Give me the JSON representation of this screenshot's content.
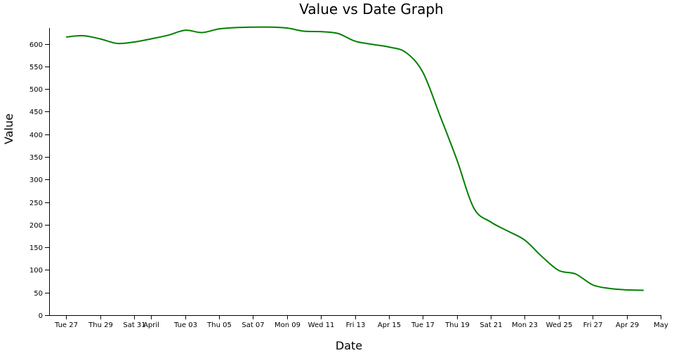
{
  "chart_data": {
    "type": "line",
    "title": "Value vs Date Graph",
    "xlabel": "Date",
    "ylabel": "Value",
    "grid": false,
    "legend": "none",
    "colors": {
      "series": "#008000",
      "axis": "#000000",
      "background": "#ffffff"
    },
    "xlim": [
      "2018-03-26",
      "2018-05-01"
    ],
    "ylim": [
      0,
      635
    ],
    "x_ticks": [
      {
        "date": "2018-03-27",
        "label": "Tue 27"
      },
      {
        "date": "2018-03-29",
        "label": "Thu 29"
      },
      {
        "date": "2018-03-31",
        "label": "Sat 31"
      },
      {
        "date": "2018-04-01",
        "label": "April"
      },
      {
        "date": "2018-04-03",
        "label": "Tue 03"
      },
      {
        "date": "2018-04-05",
        "label": "Thu 05"
      },
      {
        "date": "2018-04-07",
        "label": "Sat 07"
      },
      {
        "date": "2018-04-09",
        "label": "Mon 09"
      },
      {
        "date": "2018-04-11",
        "label": "Wed 11"
      },
      {
        "date": "2018-04-13",
        "label": "Fri 13"
      },
      {
        "date": "2018-04-15",
        "label": "Apr 15"
      },
      {
        "date": "2018-04-17",
        "label": "Tue 17"
      },
      {
        "date": "2018-04-19",
        "label": "Thu 19"
      },
      {
        "date": "2018-04-21",
        "label": "Sat 21"
      },
      {
        "date": "2018-04-23",
        "label": "Mon 23"
      },
      {
        "date": "2018-04-25",
        "label": "Wed 25"
      },
      {
        "date": "2018-04-27",
        "label": "Fri 27"
      },
      {
        "date": "2018-04-29",
        "label": "Apr 29"
      },
      {
        "date": "2018-05-01",
        "label": "May"
      }
    ],
    "y_ticks": [
      0,
      50,
      100,
      150,
      200,
      250,
      300,
      350,
      400,
      450,
      500,
      550,
      600
    ],
    "series": [
      {
        "values": [
          {
            "x": "2018-03-27",
            "y": 615
          },
          {
            "x": "2018-03-28",
            "y": 618
          },
          {
            "x": "2018-03-29",
            "y": 611
          },
          {
            "x": "2018-03-30",
            "y": 601
          },
          {
            "x": "2018-03-31",
            "y": 604
          },
          {
            "x": "2018-04-01",
            "y": 611
          },
          {
            "x": "2018-04-02",
            "y": 619
          },
          {
            "x": "2018-04-03",
            "y": 630
          },
          {
            "x": "2018-04-04",
            "y": 625
          },
          {
            "x": "2018-04-05",
            "y": 633
          },
          {
            "x": "2018-04-06",
            "y": 636
          },
          {
            "x": "2018-04-07",
            "y": 637
          },
          {
            "x": "2018-04-08",
            "y": 637
          },
          {
            "x": "2018-04-09",
            "y": 635
          },
          {
            "x": "2018-04-10",
            "y": 628
          },
          {
            "x": "2018-04-11",
            "y": 627
          },
          {
            "x": "2018-04-12",
            "y": 623
          },
          {
            "x": "2018-04-13",
            "y": 606
          },
          {
            "x": "2018-04-14",
            "y": 599
          },
          {
            "x": "2018-04-15",
            "y": 593
          },
          {
            "x": "2018-04-16",
            "y": 581
          },
          {
            "x": "2018-04-17",
            "y": 537
          },
          {
            "x": "2018-04-18",
            "y": 442
          },
          {
            "x": "2018-04-19",
            "y": 344
          },
          {
            "x": "2018-04-20",
            "y": 237
          },
          {
            "x": "2018-04-21",
            "y": 206
          },
          {
            "x": "2018-04-22",
            "y": 186
          },
          {
            "x": "2018-04-23",
            "y": 166
          },
          {
            "x": "2018-04-24",
            "y": 130
          },
          {
            "x": "2018-04-25",
            "y": 99
          },
          {
            "x": "2018-04-26",
            "y": 91
          },
          {
            "x": "2018-04-27",
            "y": 67
          },
          {
            "x": "2018-04-28",
            "y": 59
          },
          {
            "x": "2018-04-29",
            "y": 56
          },
          {
            "x": "2018-04-30",
            "y": 55
          }
        ]
      }
    ]
  }
}
